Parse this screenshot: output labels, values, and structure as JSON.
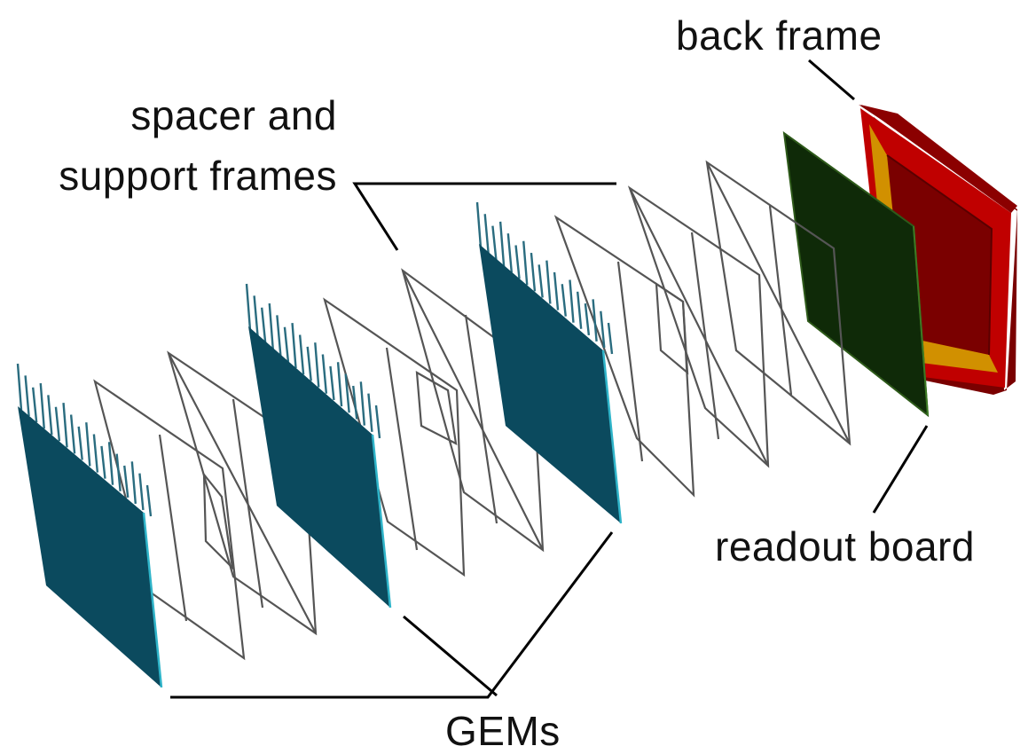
{
  "labels": {
    "back_frame": "back frame",
    "spacer_line1": "spacer and",
    "spacer_line2": "support frames",
    "readout": "readout board",
    "gems": "GEMs"
  },
  "colors": {
    "gem_foil": "#0b4a5e",
    "gem_edge": "#2fb4c9",
    "gem_tab": "#2a6c7f",
    "frame_stroke": "#555555",
    "readout_board": "#0f2a08",
    "readout_edge": "#2e5a1a",
    "back_frame_outer": "#c00000",
    "back_frame_dark": "#7a0000",
    "back_frame_inner": "#d19000",
    "leader_line": "#000000"
  },
  "icons": {
    "gem_foil": "gem-foil-sheet",
    "spacer_frame": "spacer-support-frame-wireframe",
    "readout_board": "readout-board-plane",
    "back_frame": "back-frame-solid"
  }
}
